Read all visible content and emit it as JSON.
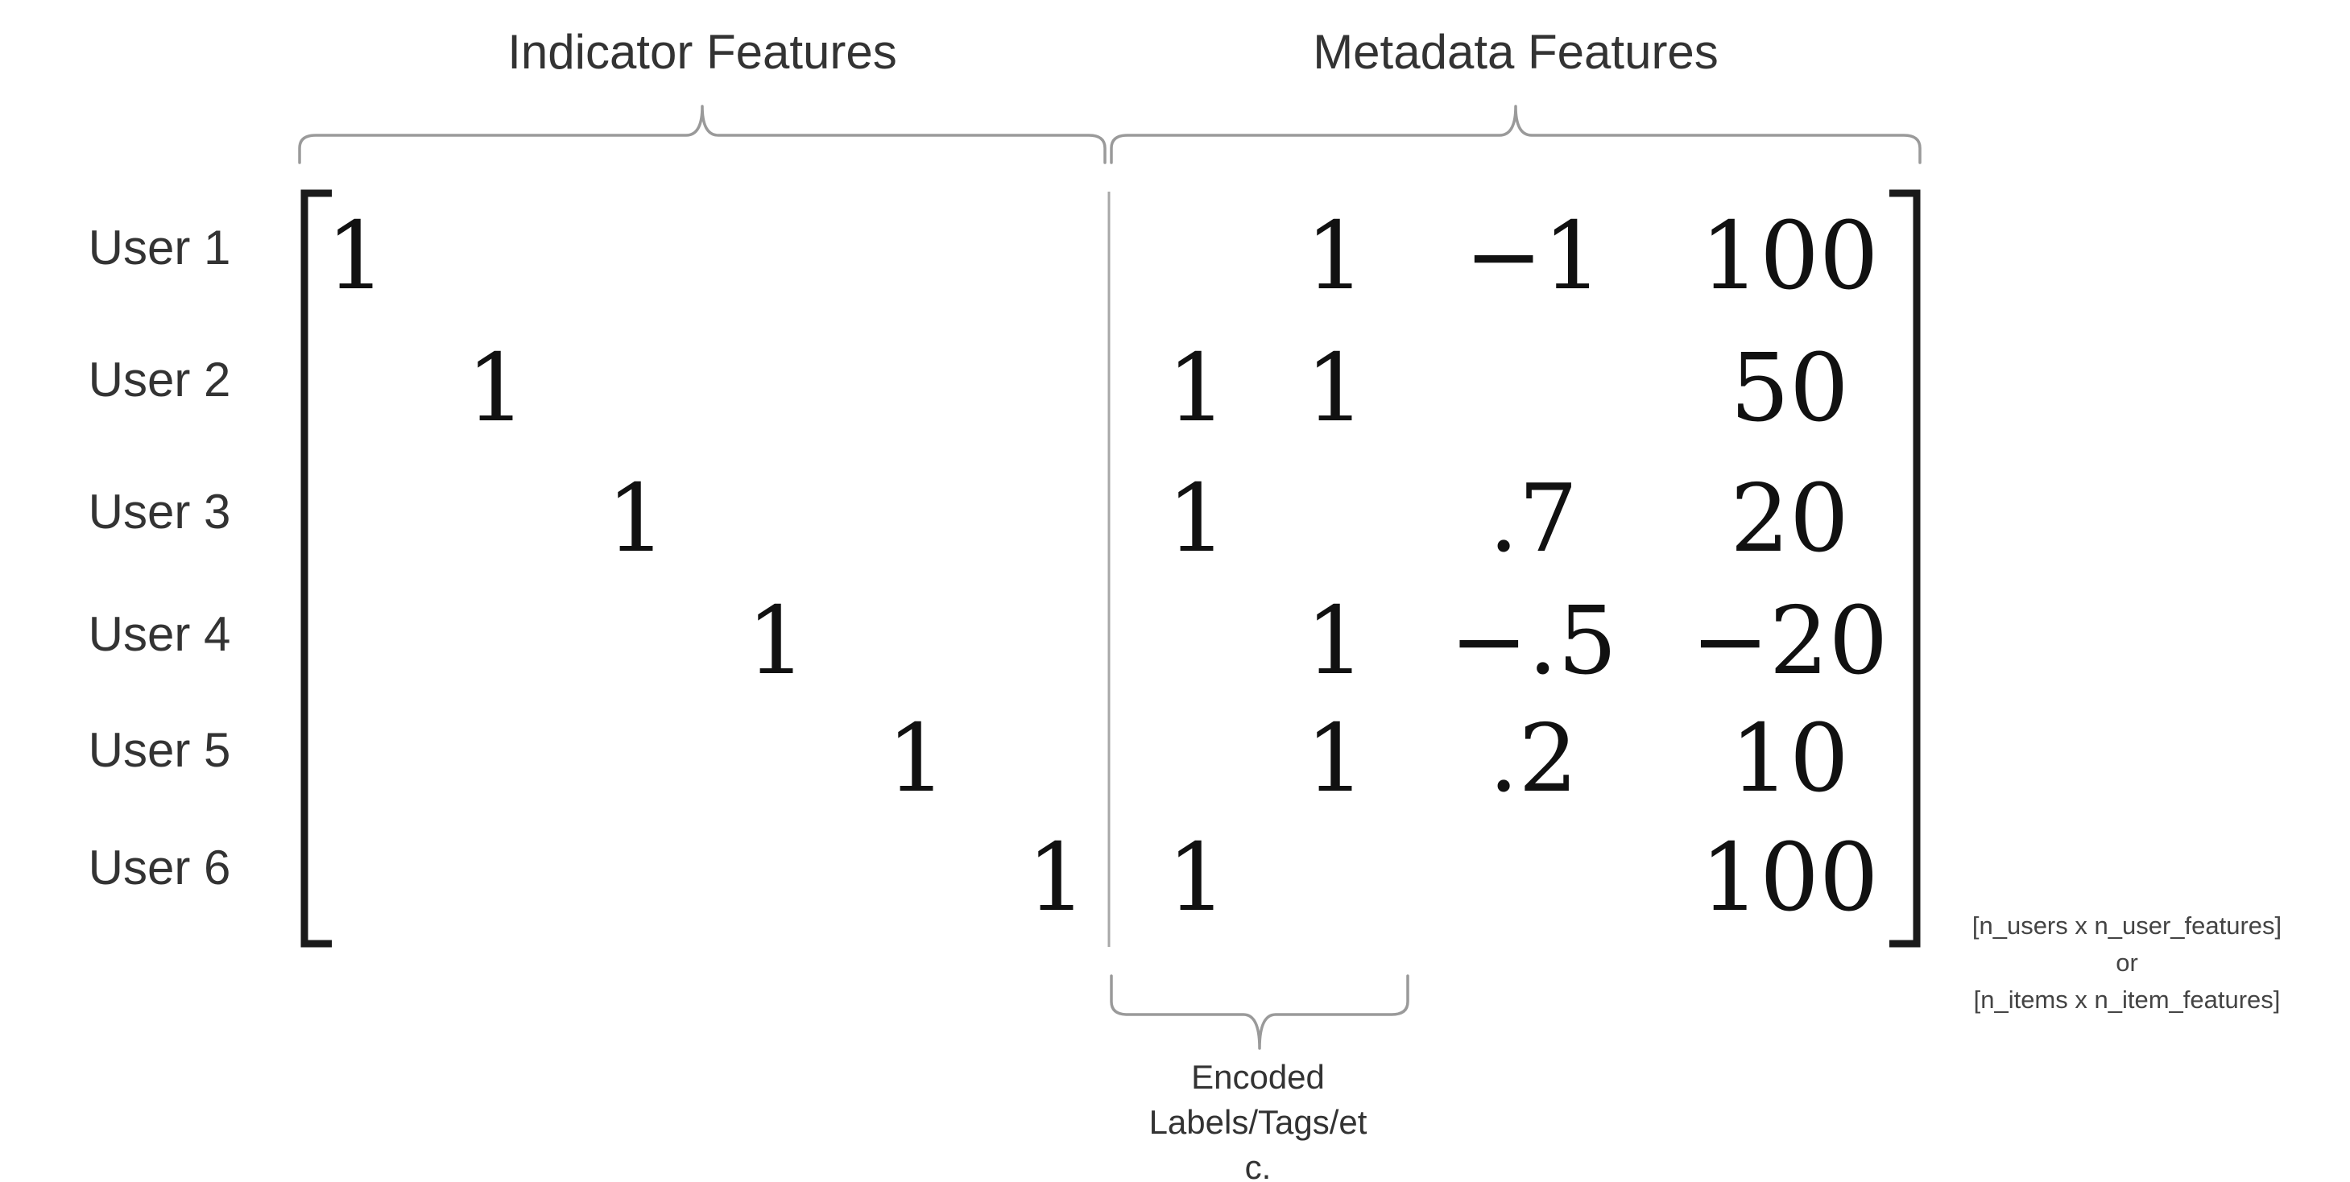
{
  "headers": {
    "indicator": "Indicator Features",
    "metadata": "Metadata Features"
  },
  "rows": [
    {
      "label": "User 1",
      "indicator": [
        "1",
        "",
        "",
        "",
        "",
        ""
      ],
      "metadata": [
        "",
        "1",
        "−1",
        "100"
      ]
    },
    {
      "label": "User 2",
      "indicator": [
        "",
        "1",
        "",
        "",
        "",
        ""
      ],
      "metadata": [
        "1",
        "1",
        "",
        "50"
      ]
    },
    {
      "label": "User 3",
      "indicator": [
        "",
        "",
        "1",
        "",
        "",
        ""
      ],
      "metadata": [
        "1",
        "",
        ".7",
        "20"
      ]
    },
    {
      "label": "User 4",
      "indicator": [
        "",
        "",
        "",
        "1",
        "",
        ""
      ],
      "metadata": [
        "",
        "1",
        "−.5",
        "−20"
      ]
    },
    {
      "label": "User 5",
      "indicator": [
        "",
        "",
        "",
        "",
        "1",
        ""
      ],
      "metadata": [
        "",
        "1",
        ".2",
        "10"
      ]
    },
    {
      "label": "User 6",
      "indicator": [
        "",
        "",
        "",
        "",
        "",
        "1"
      ],
      "metadata": [
        "1",
        "",
        "",
        "100"
      ]
    }
  ],
  "dimension_note": [
    "[n_users x n_user_features]",
    "or",
    "[n_items x n_item_features]"
  ],
  "encoded_group": {
    "caption_lines": [
      "Encoded",
      "Labels/Tags/et",
      "c."
    ]
  }
}
